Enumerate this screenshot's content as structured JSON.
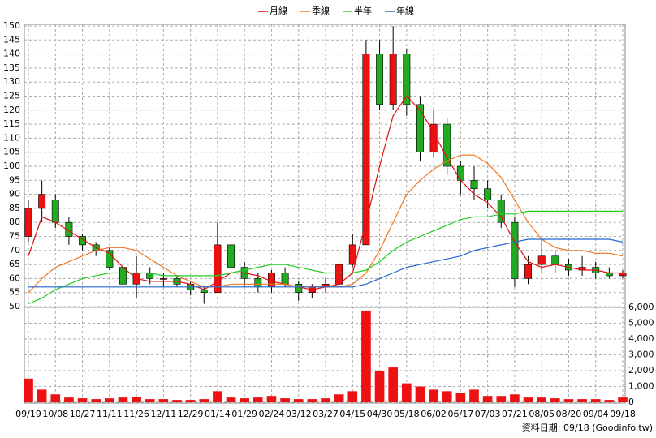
{
  "chart_data": {
    "type": "candlestick",
    "categories": [
      "09/19",
      null,
      "10/08",
      null,
      "10/27",
      null,
      "11/11",
      null,
      "11/26",
      null,
      "12/11",
      null,
      "12/29",
      null,
      "01/14",
      null,
      "01/29",
      null,
      "02/24",
      null,
      "03/12",
      null,
      "03/27",
      null,
      "04/15",
      null,
      "04/30",
      null,
      "05/18",
      null,
      "06/02",
      null,
      "06/17",
      null,
      "07/03",
      null,
      "07/21",
      null,
      "08/05",
      null,
      "08/20",
      null,
      "09/04",
      null,
      "09/18"
    ],
    "open": [
      75,
      85,
      88,
      80,
      75,
      72,
      70,
      64,
      58,
      62,
      60,
      60,
      58,
      56,
      55,
      72,
      64,
      60,
      57,
      62,
      58,
      55,
      57,
      58,
      65,
      72,
      140,
      122,
      140,
      122,
      105,
      115,
      100,
      95,
      92,
      88,
      80,
      60,
      65,
      68,
      65,
      63,
      64,
      62,
      61
    ],
    "high": [
      88,
      95,
      90,
      82,
      76,
      73,
      71,
      66,
      68,
      64,
      62,
      61,
      59,
      57,
      80,
      74,
      66,
      62,
      63,
      64,
      59,
      58,
      60,
      66,
      76,
      145,
      145,
      150,
      142,
      125,
      120,
      117,
      102,
      100,
      95,
      90,
      82,
      68,
      74,
      70,
      67,
      68,
      66,
      64,
      63
    ],
    "low": [
      73,
      80,
      78,
      72,
      70,
      68,
      63,
      57,
      53,
      58,
      57,
      57,
      54,
      51,
      55,
      62,
      57,
      55,
      55,
      57,
      52,
      53,
      55,
      57,
      64,
      72,
      120,
      120,
      118,
      102,
      103,
      97,
      90,
      88,
      85,
      78,
      57,
      58,
      62,
      62,
      61,
      61,
      60,
      60,
      60
    ],
    "close": [
      85,
      90,
      80,
      75,
      72,
      70,
      64,
      58,
      62,
      60,
      60,
      58,
      56,
      55,
      72,
      64,
      60,
      57,
      62,
      58,
      55,
      57,
      58,
      65,
      72,
      140,
      122,
      140,
      122,
      105,
      115,
      100,
      95,
      92,
      88,
      80,
      60,
      65,
      68,
      65,
      63,
      64,
      62,
      61,
      62
    ],
    "up_color": "#ee1111",
    "down_color": "#22aa22",
    "ylim": [
      50,
      150
    ],
    "yticks": [
      50,
      55,
      60,
      65,
      70,
      75,
      80,
      85,
      90,
      95,
      100,
      105,
      110,
      115,
      120,
      125,
      130,
      135,
      140,
      145,
      150
    ],
    "series": [
      {
        "name": "月線",
        "color": "#dd1111",
        "values": [
          68,
          82,
          80,
          77,
          74,
          71,
          69,
          64,
          60,
          59,
          59,
          59,
          58,
          56,
          59,
          62,
          62,
          61,
          59,
          58,
          57,
          56,
          57,
          58,
          62,
          80,
          100,
          118,
          125,
          120,
          112,
          103,
          95,
          90,
          87,
          82,
          73,
          66,
          64,
          65,
          64,
          63,
          63,
          62,
          62
        ]
      },
      {
        "name": "季線",
        "color": "#ee7722",
        "values": [
          55,
          60,
          64,
          66,
          68,
          70,
          71,
          71,
          70,
          67,
          64,
          61,
          59,
          57,
          57,
          58,
          58,
          58,
          58,
          58,
          57,
          57,
          57,
          57,
          58,
          62,
          70,
          80,
          90,
          95,
          99,
          102,
          104,
          104,
          101,
          96,
          88,
          80,
          74,
          71,
          70,
          70,
          69,
          69,
          68
        ]
      },
      {
        "name": "半年",
        "color": "#22cc22",
        "values": [
          51,
          53,
          56,
          58,
          60,
          61,
          62,
          62,
          62,
          62,
          61,
          61,
          61,
          61,
          61,
          62,
          63,
          64,
          65,
          65,
          64,
          63,
          62,
          62,
          62,
          63,
          66,
          70,
          73,
          75,
          77,
          79,
          81,
          82,
          82,
          83,
          83,
          84,
          84,
          84,
          84,
          84,
          84,
          84,
          84
        ]
      },
      {
        "name": "年線",
        "color": "#2266cc",
        "values": [
          57,
          57,
          57,
          57,
          57,
          57,
          57,
          57,
          57,
          57,
          57,
          57,
          57,
          57,
          57,
          57,
          57,
          57,
          57,
          57,
          57,
          57,
          57,
          57,
          57,
          58,
          60,
          62,
          64,
          65,
          66,
          67,
          68,
          70,
          71,
          72,
          73,
          74,
          74,
          74,
          74,
          74,
          74,
          74,
          73
        ]
      }
    ],
    "volume": {
      "color": "#ee1111",
      "values": [
        1500,
        800,
        500,
        300,
        250,
        200,
        250,
        300,
        350,
        200,
        200,
        150,
        150,
        200,
        700,
        300,
        250,
        300,
        400,
        250,
        200,
        200,
        250,
        500,
        700,
        5800,
        2000,
        2200,
        1200,
        1000,
        800,
        700,
        600,
        800,
        400,
        400,
        500,
        300,
        300,
        250,
        200,
        200,
        200,
        150,
        300
      ]
    },
    "y2lim": [
      0,
      6000
    ],
    "y2ticks": [
      0,
      {
        "value": 1000,
        "label": "1,000"
      },
      {
        "value": 2000,
        "label": "2,000"
      },
      {
        "value": 3000,
        "label": "3,000"
      },
      {
        "value": 4000,
        "label": "4,000"
      },
      {
        "value": 5000,
        "label": "5,000"
      },
      {
        "value": 6000,
        "label": "6,000"
      }
    ],
    "grid": true,
    "legend": "top",
    "footnote": "資料日期: 09/18 (Goodinfo.tw)"
  }
}
